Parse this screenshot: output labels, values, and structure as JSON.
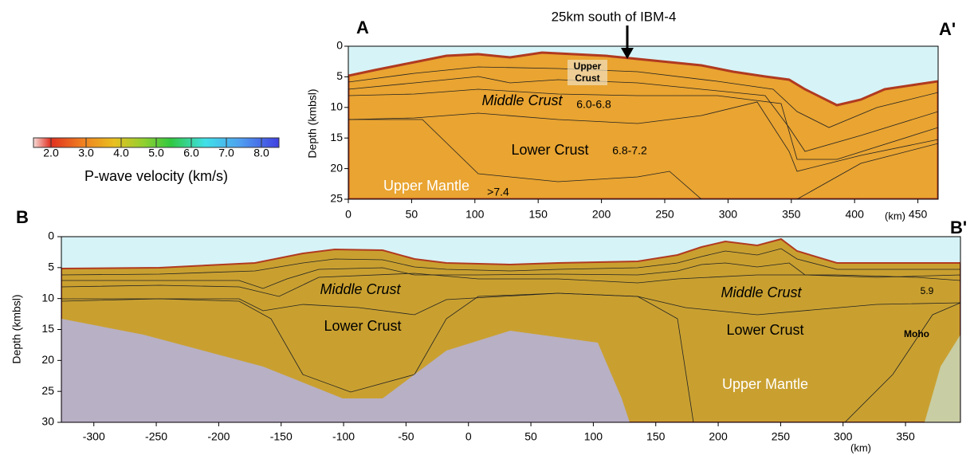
{
  "colorbar": {
    "label": "P-wave velocity (km/s)",
    "range": [
      1.5,
      8.5
    ],
    "ticks": [
      {
        "value": 2,
        "label": "2.0"
      },
      {
        "value": 3,
        "label": "3.0"
      },
      {
        "value": 4,
        "label": "4.0"
      },
      {
        "value": 5,
        "label": "5.0"
      },
      {
        "value": 6,
        "label": "6.0"
      },
      {
        "value": 7,
        "label": "7.0"
      },
      {
        "value": 8,
        "label": "8.0"
      }
    ]
  },
  "panels": [
    {
      "start_label": "A",
      "end_label": "A'",
      "annotation": "25km south of IBM-4",
      "y_label": "Depth (kmbsl)",
      "x_unit": "(km)",
      "xlim": [
        0,
        466
      ],
      "ylim": [
        0,
        25
      ],
      "xticks": [
        0,
        50,
        100,
        150,
        200,
        250,
        300,
        350,
        400,
        450
      ],
      "yticks": [
        0,
        5,
        10,
        15,
        20,
        25
      ],
      "labels": {
        "upper_crust": [
          "Upper",
          "Crust"
        ],
        "middle_crust": "Middle Crust",
        "middle_crust_range": "6.0-6.8",
        "lower_crust": "Lower Crust",
        "lower_crust_range": "6.8-7.2",
        "upper_mantle": "Upper Mantle",
        "upper_mantle_range": ">7.4"
      }
    },
    {
      "start_label": "B",
      "end_label": "B'",
      "y_label": "Depth (kmbsl)",
      "x_unit": "(km)",
      "xlim": [
        -326,
        394
      ],
      "ylim": [
        0,
        30
      ],
      "xticks": [
        -300,
        -250,
        -200,
        -150,
        -100,
        -50,
        0,
        50,
        100,
        150,
        200,
        250,
        300,
        350
      ],
      "yticks": [
        0,
        5,
        10,
        15,
        20,
        25,
        30
      ],
      "labels": {
        "middle_crust_west": "Middle Crust",
        "middle_crust_east": "Middle Crust",
        "lower_crust_west": "Lower Crust",
        "lower_crust_east": "Lower Crust",
        "upper_mantle": "Upper Mantle",
        "moho": "Moho",
        "velocity": "5.9"
      }
    }
  ]
}
